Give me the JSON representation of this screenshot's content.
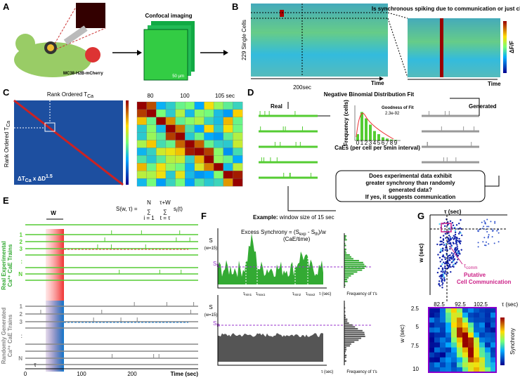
{
  "panels": {
    "a": {
      "label": "A",
      "imaging": "Confocal imaging",
      "scale": "50 µm",
      "cell_line": "MC38-H2B-mCherry"
    },
    "b": {
      "label": "B",
      "ylabel": "229 Single Cells",
      "xmark": "200sec",
      "time1": "Time",
      "time2": "Time",
      "question": "Is synchronous spiking due to communication or just chance?",
      "colorbar": "ΔF/F"
    },
    "c": {
      "label": "C",
      "title": "Rank Ordered T",
      "title_sub": "Ca",
      "ylabel": "Rank Ordered T",
      "ylabel_sub": "Ca",
      "ticks": [
        "80",
        "100",
        "105 sec"
      ],
      "metric": "ΔT",
      "metric_sub": "Ca",
      "metric_mid": " x ΔD",
      "metric_sup": "1.5"
    },
    "d": {
      "label": "D",
      "title": "Negative Binomial Distribution Fit",
      "real": "Real",
      "generated": "Generated",
      "gof": "Goodness of Fit",
      "gof_value": "2.3e-92",
      "hist_ylabel": "Frequency (cells)",
      "hist_xlabel": "CaEs (per cell per 5min interval)",
      "hist_ticks": [
        "0",
        "1",
        "2",
        "3",
        "4",
        "5",
        "6",
        "7",
        "8",
        "9"
      ],
      "question": [
        "Does experimental data exhibit",
        "greater synchrony than randomly",
        "generated data?",
        "If yes, it suggests communication"
      ]
    },
    "e": {
      "label": "E",
      "formula_lhs": "S(w, τ) =",
      "sum1_top": "N",
      "sum1_bot": "i = 1",
      "sum2_top": "τ+W",
      "sum2_bot": "t = τ",
      "formula_term": "s",
      "formula_sub": "i",
      "formula_arg": "(t)",
      "window": "W",
      "rows_real": [
        "1",
        "2",
        "3",
        ":",
        "N"
      ],
      "rows_gen": [
        "1",
        "2",
        "3",
        ":",
        "N"
      ],
      "real_label": [
        "Real Experimental",
        "Ca²⁺ CaE Trains"
      ],
      "gen_label": [
        "Randomly Generated",
        "Ca²⁺ CaE Trains"
      ],
      "ticks": [
        "0",
        "100",
        "200"
      ],
      "xlabel": "Time (sec)",
      "tau": "τ"
    },
    "f": {
      "label": "F",
      "example_bold": "Example:",
      "example": " window size of 15 sec",
      "ylabel1": "S",
      "ylabel1b": "(w=15)",
      "ylabel2": "S",
      "ylabel2b": "(w=15)",
      "sth1": "S",
      "sth1_sub": "th",
      "sth2": "S",
      "sth2_sub": "th",
      "excess": "Excess Synchrony = (S",
      "excess_sub1": "exp",
      "excess_mid": " - S",
      "excess_sub2": "th",
      "excess_end": ")/w",
      "excess_units": "(CaE/time)",
      "tmin1": "τ",
      "tmin1_sub": "min1",
      "tmax1": "τ",
      "tmax1_sub": "max1",
      "tmin2": "τ",
      "tmin2_sub": "min2",
      "tmax2": "τ",
      "tmax2_sub": "max2",
      "xlabel1": "τ (sec)",
      "xlabel2": "τ (sec)",
      "freq1": "Frequency of τ's",
      "freq2": "Frequency of τ's"
    },
    "g": {
      "label": "G",
      "tau": "τ (sec)",
      "w": "w (sec)",
      "tcomm": "τ",
      "tcomm_sub": "comm",
      "putative": [
        "Putative",
        "Cell Communication"
      ],
      "xticks": [
        "82.5",
        "92.5",
        "102.5"
      ],
      "yticks": [
        "2.5",
        "5",
        "7.5",
        "10"
      ],
      "w2": "w (sec)",
      "tau2": "τ (sec)",
      "colorbar": "Synchrony"
    }
  }
}
